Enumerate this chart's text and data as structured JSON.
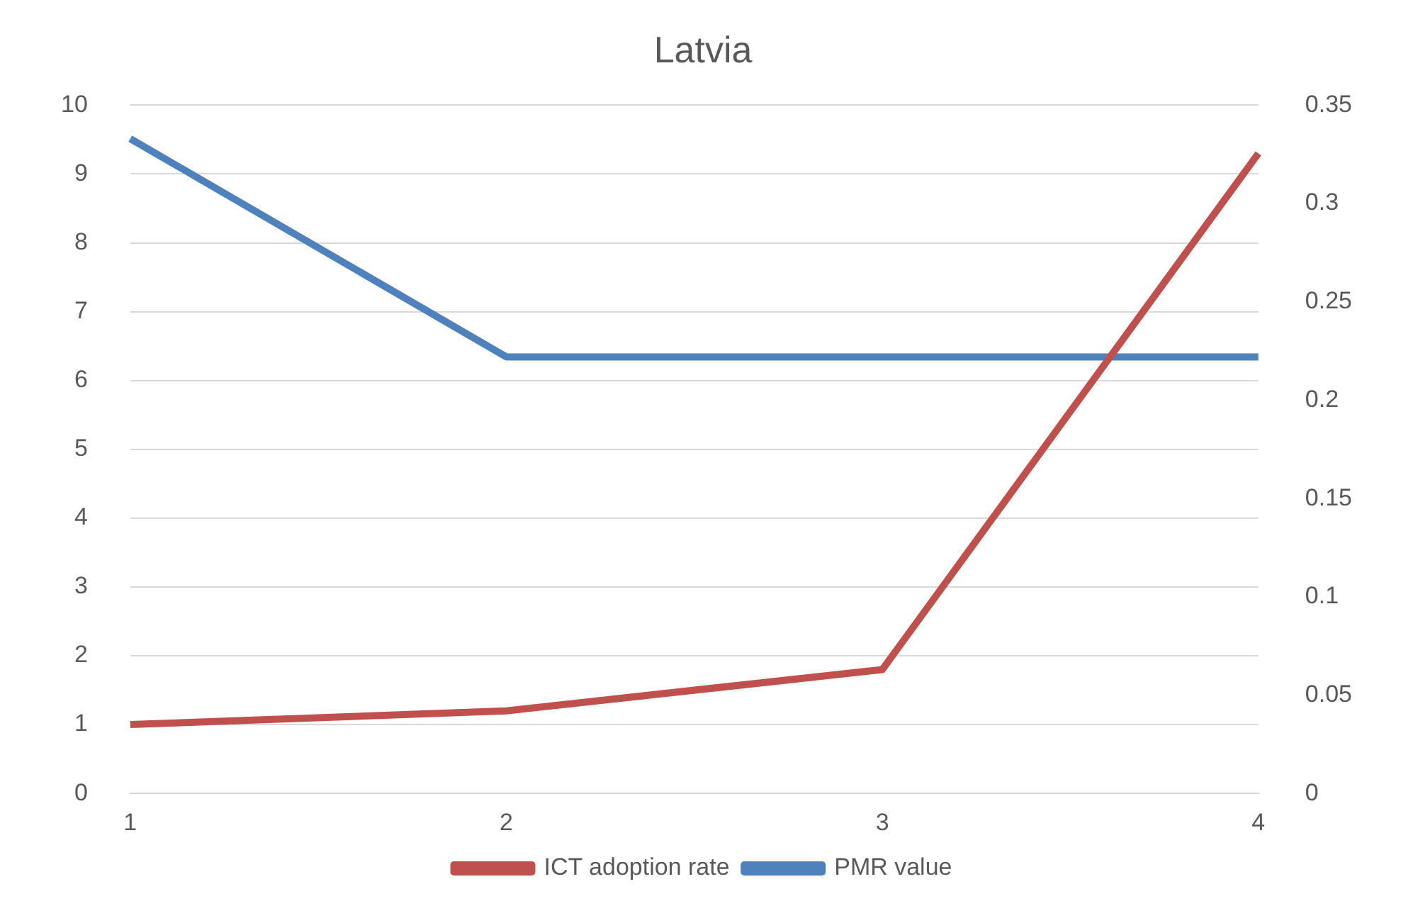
{
  "chart_data": {
    "type": "line",
    "title": "Latvia",
    "categories": [
      "1",
      "2",
      "3",
      "4"
    ],
    "series": [
      {
        "name": "ICT adoption rate",
        "color": "#c0504d",
        "values": [
          1.0,
          1.2,
          1.8,
          9.3
        ]
      },
      {
        "name": "PMR value",
        "color": "#4f81bd",
        "values": [
          0.333,
          0.222,
          0.222,
          0.222
        ],
        "axis": "y2"
      }
    ],
    "ylim": [
      0,
      10
    ],
    "yticks": [
      0,
      1,
      2,
      3,
      4,
      5,
      6,
      7,
      8,
      9,
      10
    ],
    "y2lim": [
      0,
      0.35
    ],
    "y2ticks": [
      0,
      0.05,
      0.1,
      0.15,
      0.2,
      0.25,
      0.3,
      0.35
    ],
    "grid": "y",
    "legend": "bottom",
    "marker": "none",
    "line_style": "solid"
  }
}
